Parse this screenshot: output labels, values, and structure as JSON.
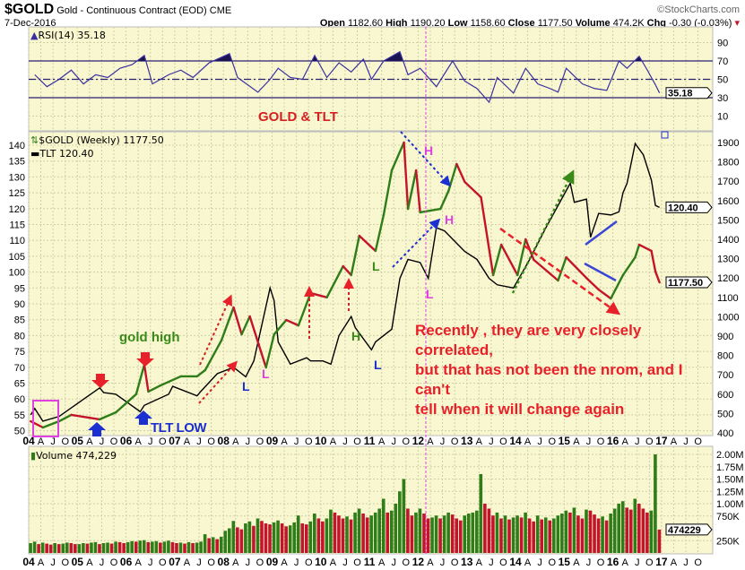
{
  "header": {
    "symbol": "$GOLD",
    "name": "Gold - Continuous Contract (EOD) CME",
    "source": "©StockCharts.com",
    "date": "7-Dec-2016",
    "open_label": "Open",
    "open": "1182.60",
    "high_label": "High",
    "high": "1190.20",
    "low_label": "Low",
    "low": "1158.60",
    "close_label": "Close",
    "close": "1177.50",
    "volume_label": "Volume",
    "volume": "474.2K",
    "chg_label": "Chg",
    "chg": "-0.30 (-0.03%)",
    "chg_arrow": "▾"
  },
  "rsi_panel": {
    "label": "RSI(14) 35.18",
    "last": "35.18"
  },
  "main_panel": {
    "legend_gold": "$GOLD (Weekly) 1177.50",
    "legend_tlt": "TLT 120.40",
    "last_tlt": "120.40",
    "last_gold": "1177.50"
  },
  "volume_panel": {
    "label": "Volume 474,229",
    "last": "474229"
  },
  "annotations": {
    "title": "GOLD & TLT",
    "gold_high": "gold high",
    "tlt_low": "TLT LOW",
    "H": "H",
    "L": "L",
    "note_lines": [
      "Recently , they are very closely correlated,",
      "but that has not been the nrom, and I can't",
      "tell when it will change again"
    ]
  },
  "colors": {
    "panel_bg": "#f9f7cf",
    "gold_up": "#2f7d18",
    "gold_down": "#c4142c",
    "tlt": "#000000",
    "rsi": "#3a30a0",
    "annotation_red": "#e8202a",
    "annotation_blue": "#1c2fd0",
    "annotation_green": "#3a8a1a",
    "annotation_magenta": "#e040e0"
  },
  "x_axis_labels": [
    "04",
    "A",
    "J",
    "O",
    "05",
    "A",
    "J",
    "O",
    "06",
    "A",
    "J",
    "O",
    "07",
    "A",
    "J",
    "O",
    "08",
    "A",
    "J",
    "O",
    "09",
    "A",
    "J",
    "O",
    "10",
    "A",
    "J",
    "O",
    "11",
    "A",
    "J",
    "O",
    "12",
    "A",
    "J",
    "O",
    "13",
    "A",
    "J",
    "O",
    "14",
    "A",
    "J",
    "O",
    "15",
    "A",
    "J",
    "O",
    "16",
    "A",
    "J",
    "O",
    "17",
    "A",
    "J",
    "O"
  ],
  "chart_data": [
    {
      "type": "line",
      "title": "RSI(14)",
      "ylim": [
        0,
        100
      ],
      "y_ticks": [
        "90",
        "70",
        "50",
        "30",
        "10"
      ],
      "reference_lines": [
        70,
        50,
        30
      ],
      "series": [
        {
          "name": "RSI(14)",
          "points": [
            [
              "2004-02",
              55
            ],
            [
              "2004-05",
              42
            ],
            [
              "2004-08",
              50
            ],
            [
              "2004-11",
              60
            ],
            [
              "2005-02",
              45
            ],
            [
              "2005-05",
              55
            ],
            [
              "2005-08",
              52
            ],
            [
              "2005-11",
              62
            ],
            [
              "2006-02",
              66
            ],
            [
              "2006-05",
              76
            ],
            [
              "2006-07",
              45
            ],
            [
              "2006-11",
              55
            ],
            [
              "2007-02",
              60
            ],
            [
              "2007-05",
              52
            ],
            [
              "2007-09",
              68
            ],
            [
              "2007-12",
              74
            ],
            [
              "2008-02",
              78
            ],
            [
              "2008-04",
              52
            ],
            [
              "2008-09",
              36
            ],
            [
              "2008-12",
              50
            ],
            [
              "2009-02",
              62
            ],
            [
              "2009-05",
              52
            ],
            [
              "2009-08",
              50
            ],
            [
              "2009-11",
              76
            ],
            [
              "2010-02",
              52
            ],
            [
              "2010-05",
              68
            ],
            [
              "2010-08",
              58
            ],
            [
              "2010-11",
              72
            ],
            [
              "2011-01",
              50
            ],
            [
              "2011-04",
              70
            ],
            [
              "2011-08",
              80
            ],
            [
              "2011-10",
              55
            ],
            [
              "2012-01",
              62
            ],
            [
              "2012-05",
              42
            ],
            [
              "2012-09",
              70
            ],
            [
              "2012-12",
              48
            ],
            [
              "2013-03",
              40
            ],
            [
              "2013-06",
              25
            ],
            [
              "2013-08",
              52
            ],
            [
              "2013-12",
              35
            ],
            [
              "2014-03",
              62
            ],
            [
              "2014-06",
              45
            ],
            [
              "2014-09",
              40
            ],
            [
              "2014-11",
              36
            ],
            [
              "2015-01",
              62
            ],
            [
              "2015-05",
              45
            ],
            [
              "2015-08",
              40
            ],
            [
              "2015-11",
              38
            ],
            [
              "2016-02",
              70
            ],
            [
              "2016-04",
              62
            ],
            [
              "2016-07",
              75
            ],
            [
              "2016-09",
              60
            ],
            [
              "2016-11",
              44
            ],
            [
              "2016-12",
              35.18
            ]
          ]
        }
      ]
    },
    {
      "type": "line",
      "title": "$GOLD (Weekly) / TLT",
      "left_axis": {
        "series": "TLT",
        "ylim": [
          47,
          146
        ],
        "ticks": [
          140,
          135,
          130,
          125,
          120,
          115,
          110,
          105,
          100,
          95,
          90,
          85,
          80,
          75,
          70,
          65,
          60,
          55,
          50
        ]
      },
      "right_axis": {
        "series": "$GOLD",
        "ylim": [
          360,
          1920
        ],
        "ticks": [
          1900,
          1800,
          1700,
          1600,
          1500,
          1400,
          1300,
          1200,
          1100,
          1000,
          900,
          800,
          700,
          600,
          500,
          400
        ]
      },
      "series": [
        {
          "name": "$GOLD",
          "points": [
            [
              "2004-01",
              460
            ],
            [
              "2004-04",
              428
            ],
            [
              "2004-08",
              460
            ],
            [
              "2004-11",
              493
            ],
            [
              "2005-06",
              470
            ],
            [
              "2005-10",
              506
            ],
            [
              "2006-03",
              600
            ],
            [
              "2006-05",
              752
            ],
            [
              "2006-06",
              613
            ],
            [
              "2006-09",
              645
            ],
            [
              "2007-02",
              692
            ],
            [
              "2007-06",
              692
            ],
            [
              "2007-08",
              724
            ],
            [
              "2007-12",
              877
            ],
            [
              "2008-03",
              1048
            ],
            [
              "2008-05",
              909
            ],
            [
              "2008-07",
              1002
            ],
            [
              "2008-11",
              738
            ],
            [
              "2009-01",
              909
            ],
            [
              "2009-04",
              983
            ],
            [
              "2009-07",
              955
            ],
            [
              "2009-10",
              1122
            ],
            [
              "2010-02",
              1100
            ],
            [
              "2010-06",
              1261
            ],
            [
              "2010-08",
              1215
            ],
            [
              "2010-10",
              1418
            ],
            [
              "2011-02",
              1340
            ],
            [
              "2011-04",
              1525
            ],
            [
              "2011-06",
              1756
            ],
            [
              "2011-09",
              1900
            ],
            [
              "2011-10",
              1557
            ],
            [
              "2011-12",
              1756
            ],
            [
              "2012-01",
              1539
            ],
            [
              "2012-06",
              1557
            ],
            [
              "2012-08",
              1650
            ],
            [
              "2012-10",
              1789
            ],
            [
              "2012-12",
              1696
            ],
            [
              "2013-04",
              1617
            ],
            [
              "2013-07",
              1215
            ],
            [
              "2013-09",
              1372
            ],
            [
              "2014-01",
              1215
            ],
            [
              "2014-03",
              1400
            ],
            [
              "2014-05",
              1294
            ],
            [
              "2014-11",
              1187
            ],
            [
              "2015-01",
              1307
            ],
            [
              "2015-06",
              1200
            ],
            [
              "2015-09",
              1140
            ],
            [
              "2015-12",
              1094
            ],
            [
              "2016-03",
              1215
            ],
            [
              "2016-06",
              1307
            ],
            [
              "2016-07",
              1372
            ],
            [
              "2016-10",
              1340
            ],
            [
              "2016-11",
              1233
            ],
            [
              "2016-12",
              1177.5
            ]
          ]
        },
        {
          "name": "TLT",
          "points": [
            [
              "2004-01",
              55
            ],
            [
              "2004-02",
              57
            ],
            [
              "2004-04",
              53
            ],
            [
              "2004-08",
              54.5
            ],
            [
              "2005-01",
              59
            ],
            [
              "2005-06",
              63.5
            ],
            [
              "2005-07",
              62
            ],
            [
              "2005-10",
              61.5
            ],
            [
              "2006-04",
              56
            ],
            [
              "2006-05",
              58
            ],
            [
              "2006-11",
              61.5
            ],
            [
              "2006-12",
              64
            ],
            [
              "2007-06",
              61
            ],
            [
              "2007-07",
              62.5
            ],
            [
              "2007-11",
              68
            ],
            [
              "2008-03",
              70
            ],
            [
              "2008-06",
              67
            ],
            [
              "2008-08",
              72
            ],
            [
              "2008-12",
              95
            ],
            [
              "2009-01",
              91
            ],
            [
              "2009-02",
              78
            ],
            [
              "2009-05",
              71
            ],
            [
              "2009-09",
              73
            ],
            [
              "2009-10",
              72
            ],
            [
              "2010-01",
              72
            ],
            [
              "2010-03",
              71
            ],
            [
              "2010-05",
              80
            ],
            [
              "2010-08",
              86
            ],
            [
              "2010-09",
              82.5
            ],
            [
              "2011-01",
              75.5
            ],
            [
              "2011-02",
              78
            ],
            [
              "2011-06",
              82
            ],
            [
              "2011-08",
              98
            ],
            [
              "2011-10",
              104
            ],
            [
              "2012-01",
              103
            ],
            [
              "2012-03",
              98
            ],
            [
              "2012-05",
              114
            ],
            [
              "2012-07",
              113
            ],
            [
              "2012-12",
              106.5
            ],
            [
              "2013-03",
              104
            ],
            [
              "2013-06",
              98
            ],
            [
              "2013-08",
              96
            ],
            [
              "2013-12",
              95
            ],
            [
              "2014-04",
              104
            ],
            [
              "2014-08",
              114
            ],
            [
              "2015-02",
              128
            ],
            [
              "2015-03",
              122
            ],
            [
              "2015-06",
              123
            ],
            [
              "2015-07",
              111
            ],
            [
              "2015-09",
              118.5
            ],
            [
              "2015-12",
              118
            ],
            [
              "2016-02",
              119
            ],
            [
              "2016-03",
              125
            ],
            [
              "2016-04",
              128
            ],
            [
              "2016-06",
              140.5
            ],
            [
              "2016-08",
              137
            ],
            [
              "2016-10",
              129
            ],
            [
              "2016-11",
              121
            ],
            [
              "2016-12",
              120.4
            ]
          ]
        }
      ]
    },
    {
      "type": "bar",
      "title": "Volume",
      "start": "2004-01",
      "unit": "K",
      "ylim": [
        0,
        2000
      ],
      "y_ticks": [
        "2.00M",
        "1.75M",
        "1.50M",
        "1.25M",
        "1.00M",
        "750K",
        "250K"
      ],
      "values": [
        200,
        230,
        180,
        210,
        190,
        170,
        200,
        180,
        190,
        210,
        200,
        180,
        180,
        200,
        190,
        210,
        220,
        180,
        200,
        210,
        190,
        230,
        220,
        200,
        220,
        240,
        230,
        250,
        260,
        220,
        230,
        240,
        210,
        230,
        250,
        220,
        200,
        210,
        190,
        220,
        200,
        210,
        230,
        380,
        300,
        320,
        280,
        330,
        450,
        500,
        650,
        520,
        480,
        600,
        640,
        550,
        700,
        650,
        600,
        580,
        620,
        660,
        600,
        540,
        560,
        620,
        760,
        600,
        580,
        640,
        800,
        700,
        640,
        700,
        880,
        820,
        760,
        700,
        740,
        680,
        820,
        900,
        800,
        720,
        760,
        820,
        900,
        1100,
        820,
        860,
        1000,
        1250,
        1500,
        900,
        760,
        820,
        900,
        800,
        700,
        720,
        760,
        700,
        760,
        820,
        780,
        700,
        660,
        760,
        800,
        820,
        860,
        1600,
        1000,
        900,
        760,
        820,
        700,
        760,
        680,
        720,
        760,
        720,
        820,
        700,
        640,
        760,
        680,
        720,
        660,
        700,
        760,
        800,
        860,
        820,
        920,
        760,
        700,
        880,
        860,
        780,
        700,
        740,
        660,
        800,
        900,
        1000,
        1050,
        920,
        880,
        1100,
        1000,
        900,
        820,
        860,
        2000,
        474
      ]
    }
  ]
}
